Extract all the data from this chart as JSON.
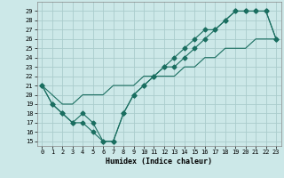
{
  "xlabel": "Humidex (Indice chaleur)",
  "xlim": [
    -0.5,
    23.5
  ],
  "ylim": [
    14.5,
    30.0
  ],
  "xticks": [
    0,
    1,
    2,
    3,
    4,
    5,
    6,
    7,
    8,
    9,
    10,
    11,
    12,
    13,
    14,
    15,
    16,
    17,
    18,
    19,
    20,
    21,
    22,
    23
  ],
  "yticks": [
    15,
    16,
    17,
    18,
    19,
    20,
    21,
    22,
    23,
    24,
    25,
    26,
    27,
    28,
    29
  ],
  "bg_color": "#cce8e8",
  "grid_color": "#aacccc",
  "line_color": "#1a6e60",
  "line1_x": [
    0,
    1,
    2,
    3,
    4,
    5,
    6,
    7,
    8,
    9,
    10,
    11,
    12,
    13,
    14,
    15,
    16,
    17,
    18,
    19,
    20,
    21,
    22,
    23
  ],
  "line1_y": [
    21,
    19,
    18,
    17,
    18,
    17,
    15,
    15,
    18,
    20,
    21,
    22,
    23,
    23,
    24,
    25,
    26,
    27,
    28,
    29,
    29,
    29,
    29,
    26
  ],
  "line2_x": [
    0,
    1,
    2,
    3,
    4,
    5,
    6,
    7,
    8,
    9,
    10,
    11,
    12,
    13,
    14,
    15,
    16,
    17,
    18,
    19,
    20,
    21,
    22,
    23
  ],
  "line2_y": [
    21,
    19,
    18,
    17,
    17,
    16,
    15,
    15,
    18,
    20,
    21,
    22,
    23,
    24,
    25,
    26,
    27,
    27,
    28,
    29,
    29,
    29,
    29,
    26
  ],
  "line3_x": [
    0,
    1,
    2,
    3,
    4,
    5,
    6,
    7,
    8,
    9,
    10,
    11,
    12,
    13,
    14,
    15,
    16,
    17,
    18,
    19,
    20,
    21,
    22,
    23
  ],
  "line3_y": [
    21,
    20,
    19,
    19,
    20,
    20,
    20,
    21,
    21,
    21,
    22,
    22,
    22,
    22,
    23,
    23,
    24,
    24,
    25,
    25,
    25,
    26,
    26,
    26
  ]
}
